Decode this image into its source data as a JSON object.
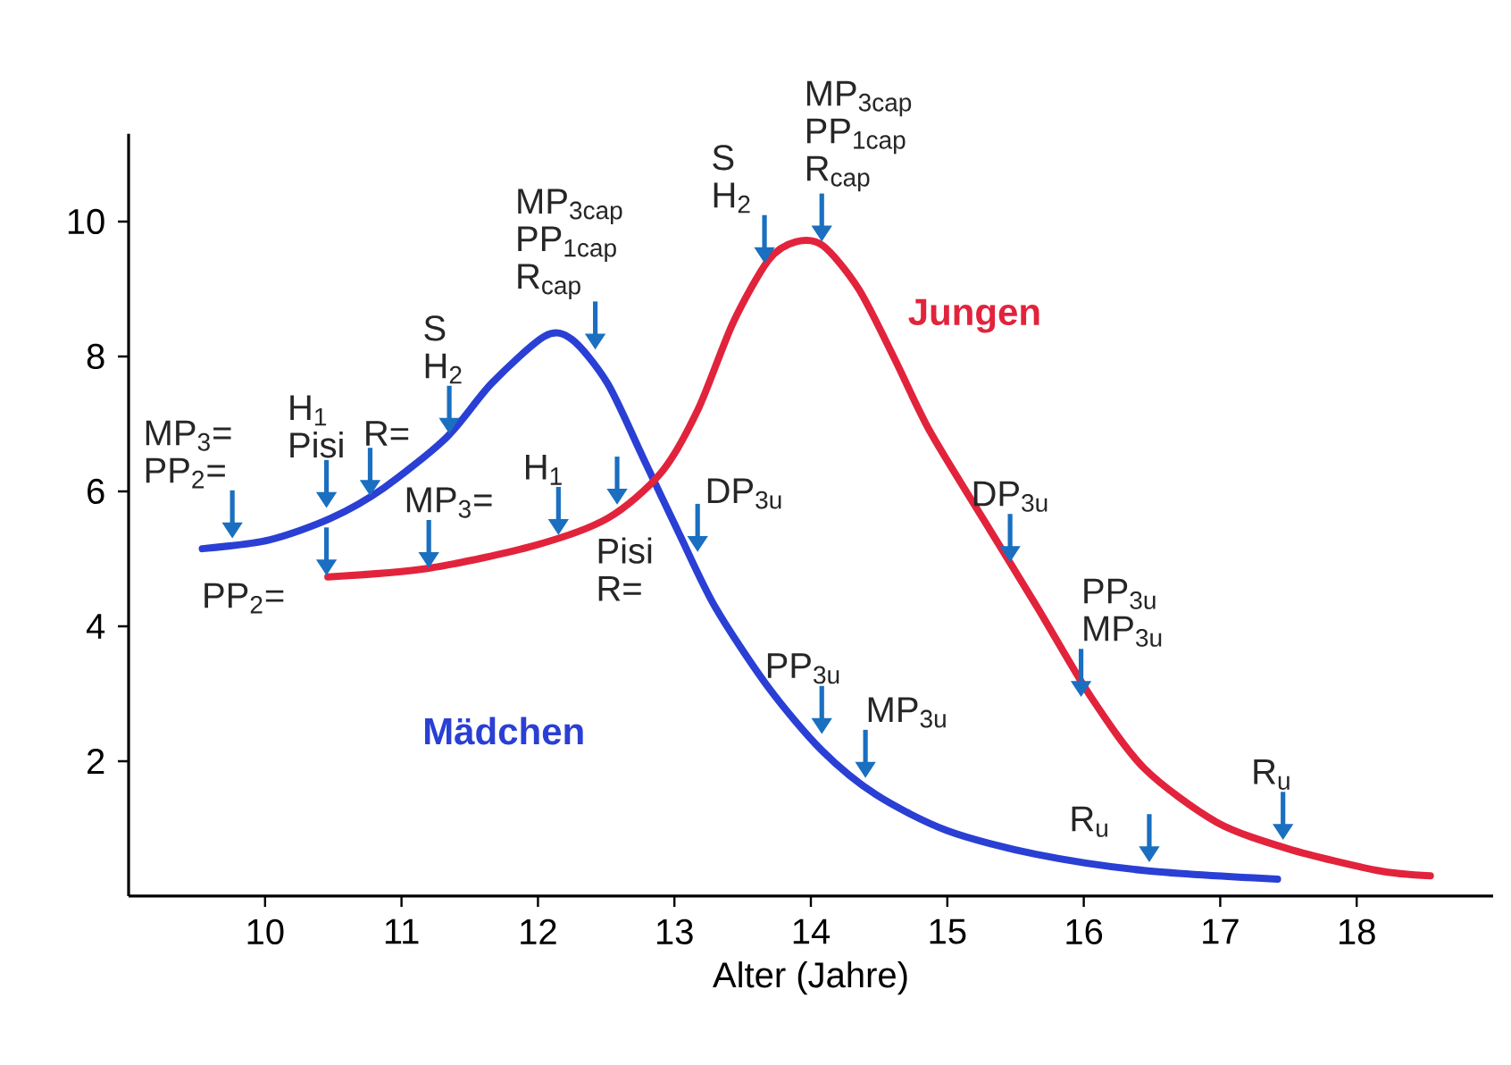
{
  "chart_data": {
    "type": "line",
    "xlabel": "Alter (Jahre)",
    "xlim": [
      9,
      19
    ],
    "ylim": [
      0,
      11.3
    ],
    "xticks": [
      10,
      11,
      12,
      13,
      14,
      15,
      16,
      17,
      18
    ],
    "yticks": [
      2,
      4,
      6,
      8,
      10
    ],
    "grid": false,
    "marker": "none",
    "line_style": "solid",
    "series": [
      {
        "name": "Mädchen",
        "color": "#2a3fd4",
        "x": [
          9.54,
          10.03,
          10.48,
          10.87,
          11.33,
          11.66,
          12.05,
          12.25,
          12.51,
          12.77,
          13.04,
          13.3,
          13.69,
          14.08,
          14.48,
          15.0,
          15.65,
          16.44,
          17.42
        ],
        "values": [
          5.15,
          5.28,
          5.6,
          6.05,
          6.8,
          7.6,
          8.3,
          8.25,
          7.6,
          6.5,
          5.35,
          4.28,
          3.09,
          2.16,
          1.5,
          0.97,
          0.62,
          0.38,
          0.25
        ]
      },
      {
        "name": "Jungen",
        "color": "#e2233c",
        "x": [
          10.46,
          11.2,
          11.98,
          12.51,
          12.9,
          13.17,
          13.43,
          13.69,
          13.89,
          14.09,
          14.35,
          14.61,
          14.87,
          15.26,
          15.66,
          16.05,
          16.44,
          16.97,
          17.5,
          18.15,
          18.54
        ],
        "values": [
          4.73,
          4.86,
          5.2,
          5.6,
          6.27,
          7.2,
          8.5,
          9.43,
          9.7,
          9.64,
          9.0,
          7.98,
          6.9,
          5.6,
          4.28,
          2.96,
          1.9,
          1.1,
          0.7,
          0.38,
          0.3
        ]
      }
    ],
    "annotations": [
      {
        "text": "MP$_{3}$= PP$_{2}$=",
        "x": 9.76,
        "y": 5.3
      },
      {
        "text": "H$_{1}$ Pisi",
        "x": 10.45,
        "y": 5.75
      },
      {
        "text": "PP$_{2}$=",
        "x": 10.45,
        "y": 4.75
      },
      {
        "text": "R=",
        "x": 10.77,
        "y": 5.93
      },
      {
        "text": "S H$_{2}$",
        "x": 11.35,
        "y": 6.85
      },
      {
        "text": "MP$_{3}$=",
        "x": 11.2,
        "y": 4.86
      },
      {
        "text": "H$_{1}$",
        "x": 12.15,
        "y": 5.35
      },
      {
        "text": "MP$_{3cap}$ PP$_{1cap}$ R$_{cap}$",
        "x": 12.42,
        "y": 8.1
      },
      {
        "text": "Pisi R=",
        "x": 12.58,
        "y": 5.8
      },
      {
        "text": "DP$_{3u}$",
        "x": 13.17,
        "y": 5.1
      },
      {
        "text": "S H$_{2}$",
        "x": 13.66,
        "y": 9.38
      },
      {
        "text": "MP$_{3cap}$ PP$_{1cap}$ R$_{cap}$",
        "x": 14.08,
        "y": 9.7
      },
      {
        "text": "PP$_{3u}$",
        "x": 14.08,
        "y": 2.4
      },
      {
        "text": "MP$_{3u}$",
        "x": 14.4,
        "y": 1.75
      },
      {
        "text": "DP$_{3u}$",
        "x": 15.46,
        "y": 4.95
      },
      {
        "text": "PP$_{3u}$ MP$_{3u}$",
        "x": 15.98,
        "y": 2.95
      },
      {
        "text": "R$_{u}$",
        "x": 16.48,
        "y": 0.5
      },
      {
        "text": "R$_{u}$",
        "x": 17.46,
        "y": 0.83
      }
    ]
  }
}
